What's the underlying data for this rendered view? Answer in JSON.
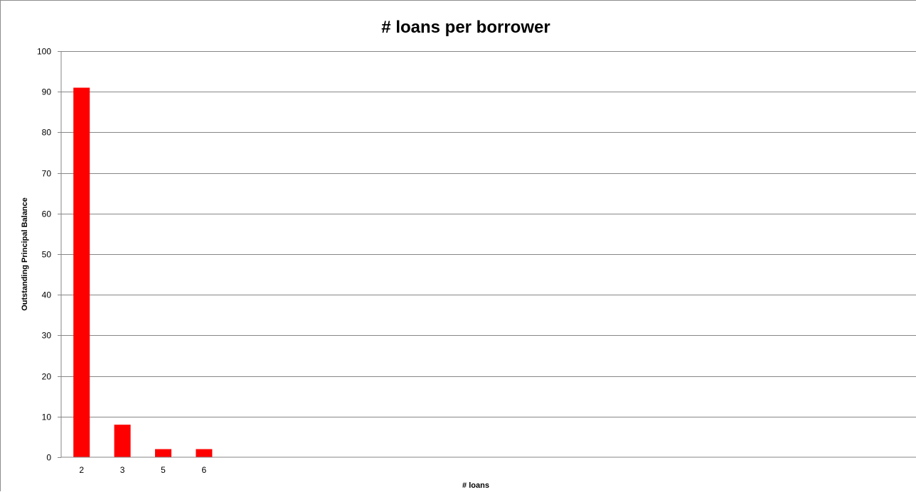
{
  "chart_data": {
    "type": "bar",
    "title": "# loans per borrower",
    "xlabel": "# loans",
    "ylabel": "Outstanding Principal Balance",
    "categories": [
      "2",
      "3",
      "5",
      "6"
    ],
    "values": [
      91,
      8,
      2,
      2
    ],
    "ylim": [
      0,
      100
    ],
    "yticks": [
      "0",
      "10",
      "20",
      "30",
      "40",
      "50",
      "60",
      "70",
      "80",
      "90",
      "100"
    ],
    "grid": true,
    "legend": "none",
    "bar_color": "#ff0000",
    "gridline_color": "#868686"
  }
}
